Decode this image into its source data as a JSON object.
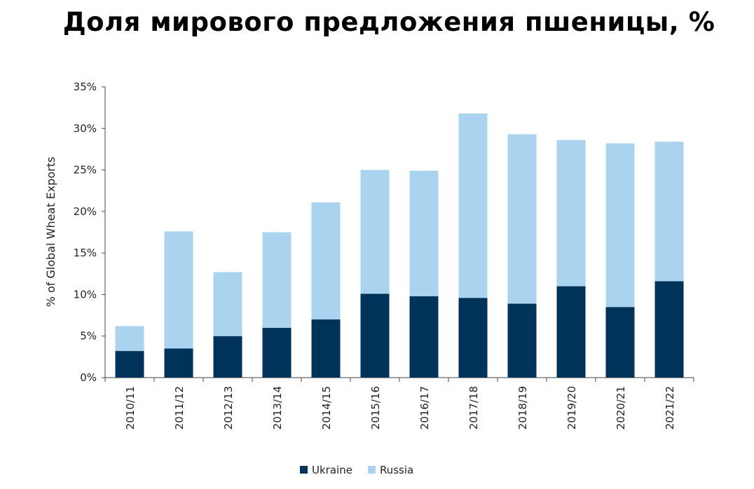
{
  "chart_data": {
    "type": "bar",
    "stacked": true,
    "title": "Доля мирового предложения пшеницы, %",
    "xlabel": "",
    "ylabel": "% of Global Wheat Exports",
    "ylim": [
      0,
      35
    ],
    "yticks": [
      0,
      5,
      10,
      15,
      20,
      25,
      30,
      35
    ],
    "ytick_labels": [
      "0%",
      "5%",
      "10%",
      "15%",
      "20%",
      "25%",
      "30%",
      "35%"
    ],
    "grid": false,
    "legend_position": "bottom",
    "categories": [
      "2010/11",
      "2011/12",
      "2012/13",
      "2013/14",
      "2014/15",
      "2015/16",
      "2016/17",
      "2017/18",
      "2018/19",
      "2019/20",
      "2020/21",
      "2021/22"
    ],
    "series": [
      {
        "name": "Ukraine",
        "color": "#003359",
        "values": [
          3.2,
          3.5,
          5.0,
          6.0,
          7.0,
          10.1,
          9.8,
          9.6,
          8.9,
          11.0,
          8.5,
          11.6
        ]
      },
      {
        "name": "Russia",
        "color": "#aad3f0",
        "values": [
          3.0,
          14.1,
          7.7,
          11.5,
          14.1,
          14.9,
          15.1,
          22.2,
          20.4,
          17.6,
          19.7,
          16.8
        ]
      }
    ]
  }
}
